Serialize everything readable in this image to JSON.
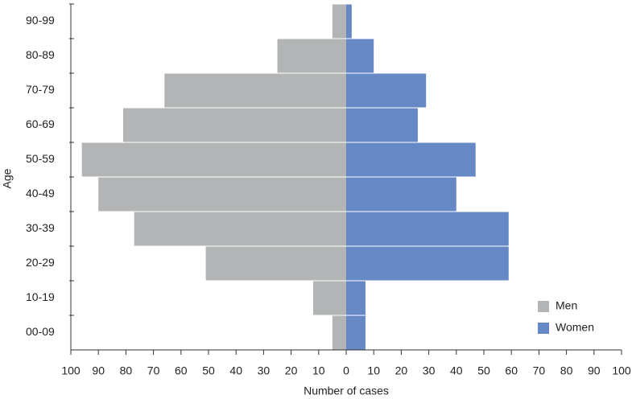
{
  "chart_data": {
    "type": "pyramid",
    "xlabel": "Number of cases",
    "ylabel": "Age",
    "categories": [
      "00-09",
      "10-19",
      "20-29",
      "30-39",
      "40-49",
      "50-59",
      "60-69",
      "70-79",
      "80-89",
      "90-99"
    ],
    "series": [
      {
        "name": "Men",
        "color": "#b3b4b6",
        "values": [
          -5,
          -12,
          -51,
          -77,
          -90,
          -96,
          -81,
          -66,
          -25,
          -5
        ]
      },
      {
        "name": "Women",
        "color": "#6688c4",
        "values": [
          7,
          7,
          59,
          59,
          40,
          47,
          26,
          29,
          10,
          2
        ]
      }
    ],
    "xlim": [
      -100,
      100
    ],
    "xticks": [
      {
        "value": -100,
        "label": "100"
      },
      {
        "value": -90,
        "label": "90"
      },
      {
        "value": -80,
        "label": "80"
      },
      {
        "value": -70,
        "label": "70"
      },
      {
        "value": -60,
        "label": "60"
      },
      {
        "value": -50,
        "label": "50"
      },
      {
        "value": -40,
        "label": "40"
      },
      {
        "value": -30,
        "label": "30"
      },
      {
        "value": -20,
        "label": "20"
      },
      {
        "value": -10,
        "label": "10"
      },
      0,
      10,
      20,
      30,
      40,
      50,
      60,
      70,
      80,
      90,
      100
    ],
    "legend": "lower right"
  }
}
